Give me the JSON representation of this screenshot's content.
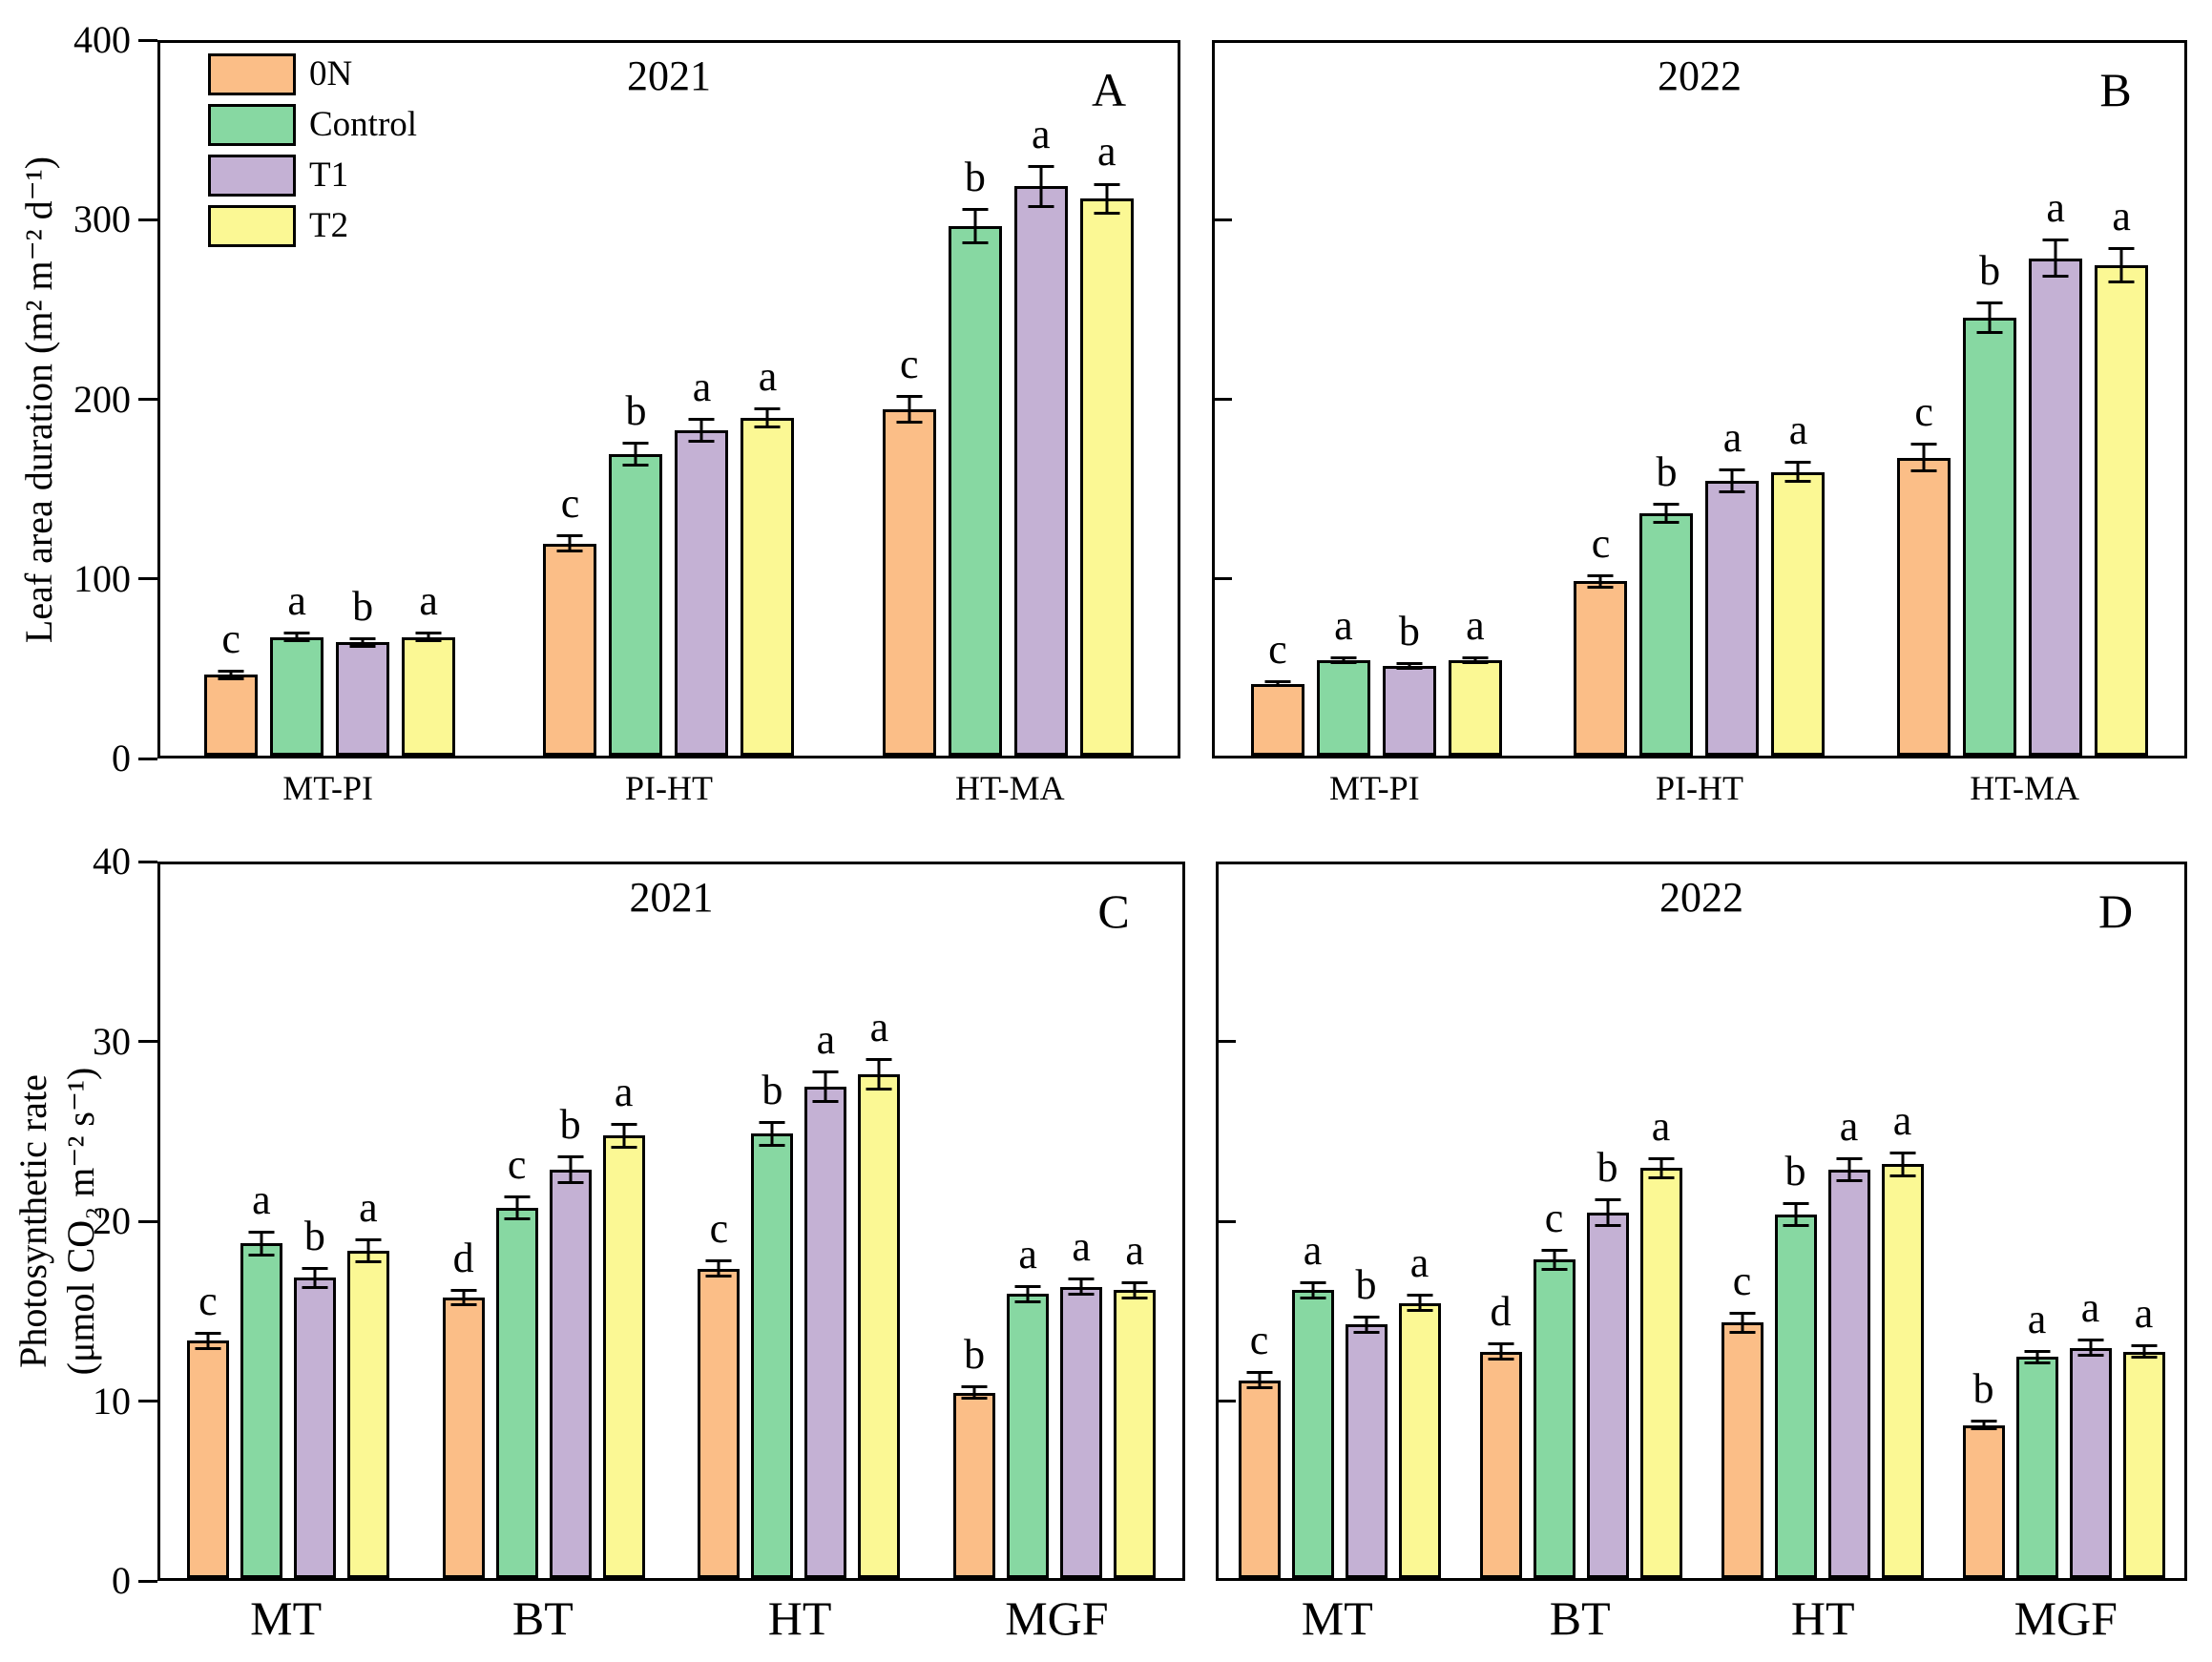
{
  "figure": {
    "background": "#ffffff",
    "axis_color": "#000000",
    "legend": {
      "items": [
        {
          "label": "0N",
          "color": "#FBBE87"
        },
        {
          "label": "Control",
          "color": "#87D8A2"
        },
        {
          "label": "T1",
          "color": "#C4B1D4"
        },
        {
          "label": "T2",
          "color": "#FBF894"
        }
      ]
    }
  },
  "chart_data": [
    {
      "type": "bar",
      "panel_label": "A",
      "title": "2021",
      "ylabel": "Leaf area duration (m² m⁻² d⁻¹)",
      "ylim": [
        0,
        400
      ],
      "yticks": [
        0,
        100,
        200,
        300,
        400
      ],
      "ytick_labels": true,
      "tick_style": "out",
      "grid": false,
      "legend_position": "top-left",
      "categories": [
        "MT-PI",
        "PI-HT",
        "HT-MA"
      ],
      "series": [
        {
          "name": "0N",
          "color": "#FBBE87",
          "values": [
            45,
            118,
            193
          ],
          "errors": [
            3,
            5,
            8
          ],
          "letters": [
            "c",
            "c",
            "c"
          ]
        },
        {
          "name": "Control",
          "color": "#87D8A2",
          "values": [
            66,
            168,
            295
          ],
          "errors": [
            3,
            7,
            10
          ],
          "letters": [
            "a",
            "b",
            "b"
          ]
        },
        {
          "name": "T1",
          "color": "#C4B1D4",
          "values": [
            63,
            181,
            317
          ],
          "errors": [
            3,
            7,
            12
          ],
          "letters": [
            "b",
            "a",
            "a"
          ]
        },
        {
          "name": "T2",
          "color": "#FBF894",
          "values": [
            66,
            188,
            310
          ],
          "errors": [
            3,
            6,
            9
          ],
          "letters": [
            "a",
            "a",
            "a"
          ]
        }
      ]
    },
    {
      "type": "bar",
      "panel_label": "B",
      "title": "2022",
      "ylabel": "",
      "ylim": [
        0,
        400
      ],
      "yticks": [
        0,
        100,
        200,
        300,
        400
      ],
      "ytick_labels": false,
      "tick_style": "in",
      "grid": false,
      "categories": [
        "MT-PI",
        "PI-HT",
        "HT-MA"
      ],
      "series": [
        {
          "name": "0N",
          "color": "#FBBE87",
          "values": [
            40,
            97,
            166
          ],
          "errors": [
            2,
            4,
            8
          ],
          "letters": [
            "c",
            "c",
            "c"
          ]
        },
        {
          "name": "Control",
          "color": "#87D8A2",
          "values": [
            53,
            135,
            244
          ],
          "errors": [
            2,
            6,
            9
          ],
          "letters": [
            "a",
            "b",
            "b"
          ]
        },
        {
          "name": "T1",
          "color": "#C4B1D4",
          "values": [
            50,
            153,
            277
          ],
          "errors": [
            2,
            7,
            11
          ],
          "letters": [
            "b",
            "a",
            "a"
          ]
        },
        {
          "name": "T2",
          "color": "#FBF894",
          "values": [
            53,
            158,
            273
          ],
          "errors": [
            2,
            6,
            10
          ],
          "letters": [
            "a",
            "a",
            "a"
          ]
        }
      ]
    },
    {
      "type": "bar",
      "panel_label": "C",
      "title": "2021",
      "ylabel_lines": [
        "Photosynthetic rate",
        "(μmol CO₂ m⁻² s⁻¹)"
      ],
      "ylim": [
        0,
        40
      ],
      "yticks": [
        0,
        10,
        20,
        30,
        40
      ],
      "ytick_labels": true,
      "tick_style": "out",
      "grid": false,
      "categories": [
        "MT",
        "BT",
        "HT",
        "MGF"
      ],
      "series": [
        {
          "name": "0N",
          "color": "#FBBE87",
          "values": [
            13.2,
            15.6,
            17.2,
            10.3
          ],
          "errors": [
            0.5,
            0.5,
            0.5,
            0.4
          ],
          "letters": [
            "c",
            "d",
            "c",
            "b"
          ]
        },
        {
          "name": "Control",
          "color": "#87D8A2",
          "values": [
            18.6,
            20.6,
            24.7,
            15.8
          ],
          "errors": [
            0.7,
            0.7,
            0.7,
            0.5
          ],
          "letters": [
            "a",
            "c",
            "b",
            "a"
          ]
        },
        {
          "name": "T1",
          "color": "#C4B1D4",
          "values": [
            16.7,
            22.7,
            27.3,
            16.2
          ],
          "errors": [
            0.6,
            0.8,
            0.9,
            0.5
          ],
          "letters": [
            "b",
            "b",
            "a",
            "a"
          ]
        },
        {
          "name": "T2",
          "color": "#FBF894",
          "values": [
            18.2,
            24.6,
            28.0,
            16.0
          ],
          "errors": [
            0.7,
            0.7,
            0.9,
            0.5
          ],
          "letters": [
            "a",
            "a",
            "a",
            "a"
          ]
        }
      ]
    },
    {
      "type": "bar",
      "panel_label": "D",
      "title": "2022",
      "ylabel": "",
      "ylim": [
        0,
        40
      ],
      "yticks": [
        0,
        10,
        20,
        30,
        40
      ],
      "ytick_labels": false,
      "tick_style": "in",
      "grid": false,
      "categories": [
        "MT",
        "BT",
        "HT",
        "MGF"
      ],
      "series": [
        {
          "name": "0N",
          "color": "#FBBE87",
          "values": [
            11.0,
            12.6,
            14.2,
            8.5
          ],
          "errors": [
            0.5,
            0.5,
            0.6,
            0.3
          ],
          "letters": [
            "c",
            "d",
            "c",
            "b"
          ]
        },
        {
          "name": "Control",
          "color": "#87D8A2",
          "values": [
            16.0,
            17.7,
            20.2,
            12.3
          ],
          "errors": [
            0.5,
            0.6,
            0.7,
            0.4
          ],
          "letters": [
            "a",
            "c",
            "b",
            "a"
          ]
        },
        {
          "name": "T1",
          "color": "#C4B1D4",
          "values": [
            14.1,
            20.3,
            22.7,
            12.8
          ],
          "errors": [
            0.5,
            0.8,
            0.7,
            0.5
          ],
          "letters": [
            "b",
            "b",
            "a",
            "a"
          ]
        },
        {
          "name": "T2",
          "color": "#FBF894",
          "values": [
            15.3,
            22.8,
            23.0,
            12.6
          ],
          "errors": [
            0.5,
            0.6,
            0.7,
            0.4
          ],
          "letters": [
            "a",
            "a",
            "a",
            "a"
          ]
        }
      ]
    }
  ]
}
